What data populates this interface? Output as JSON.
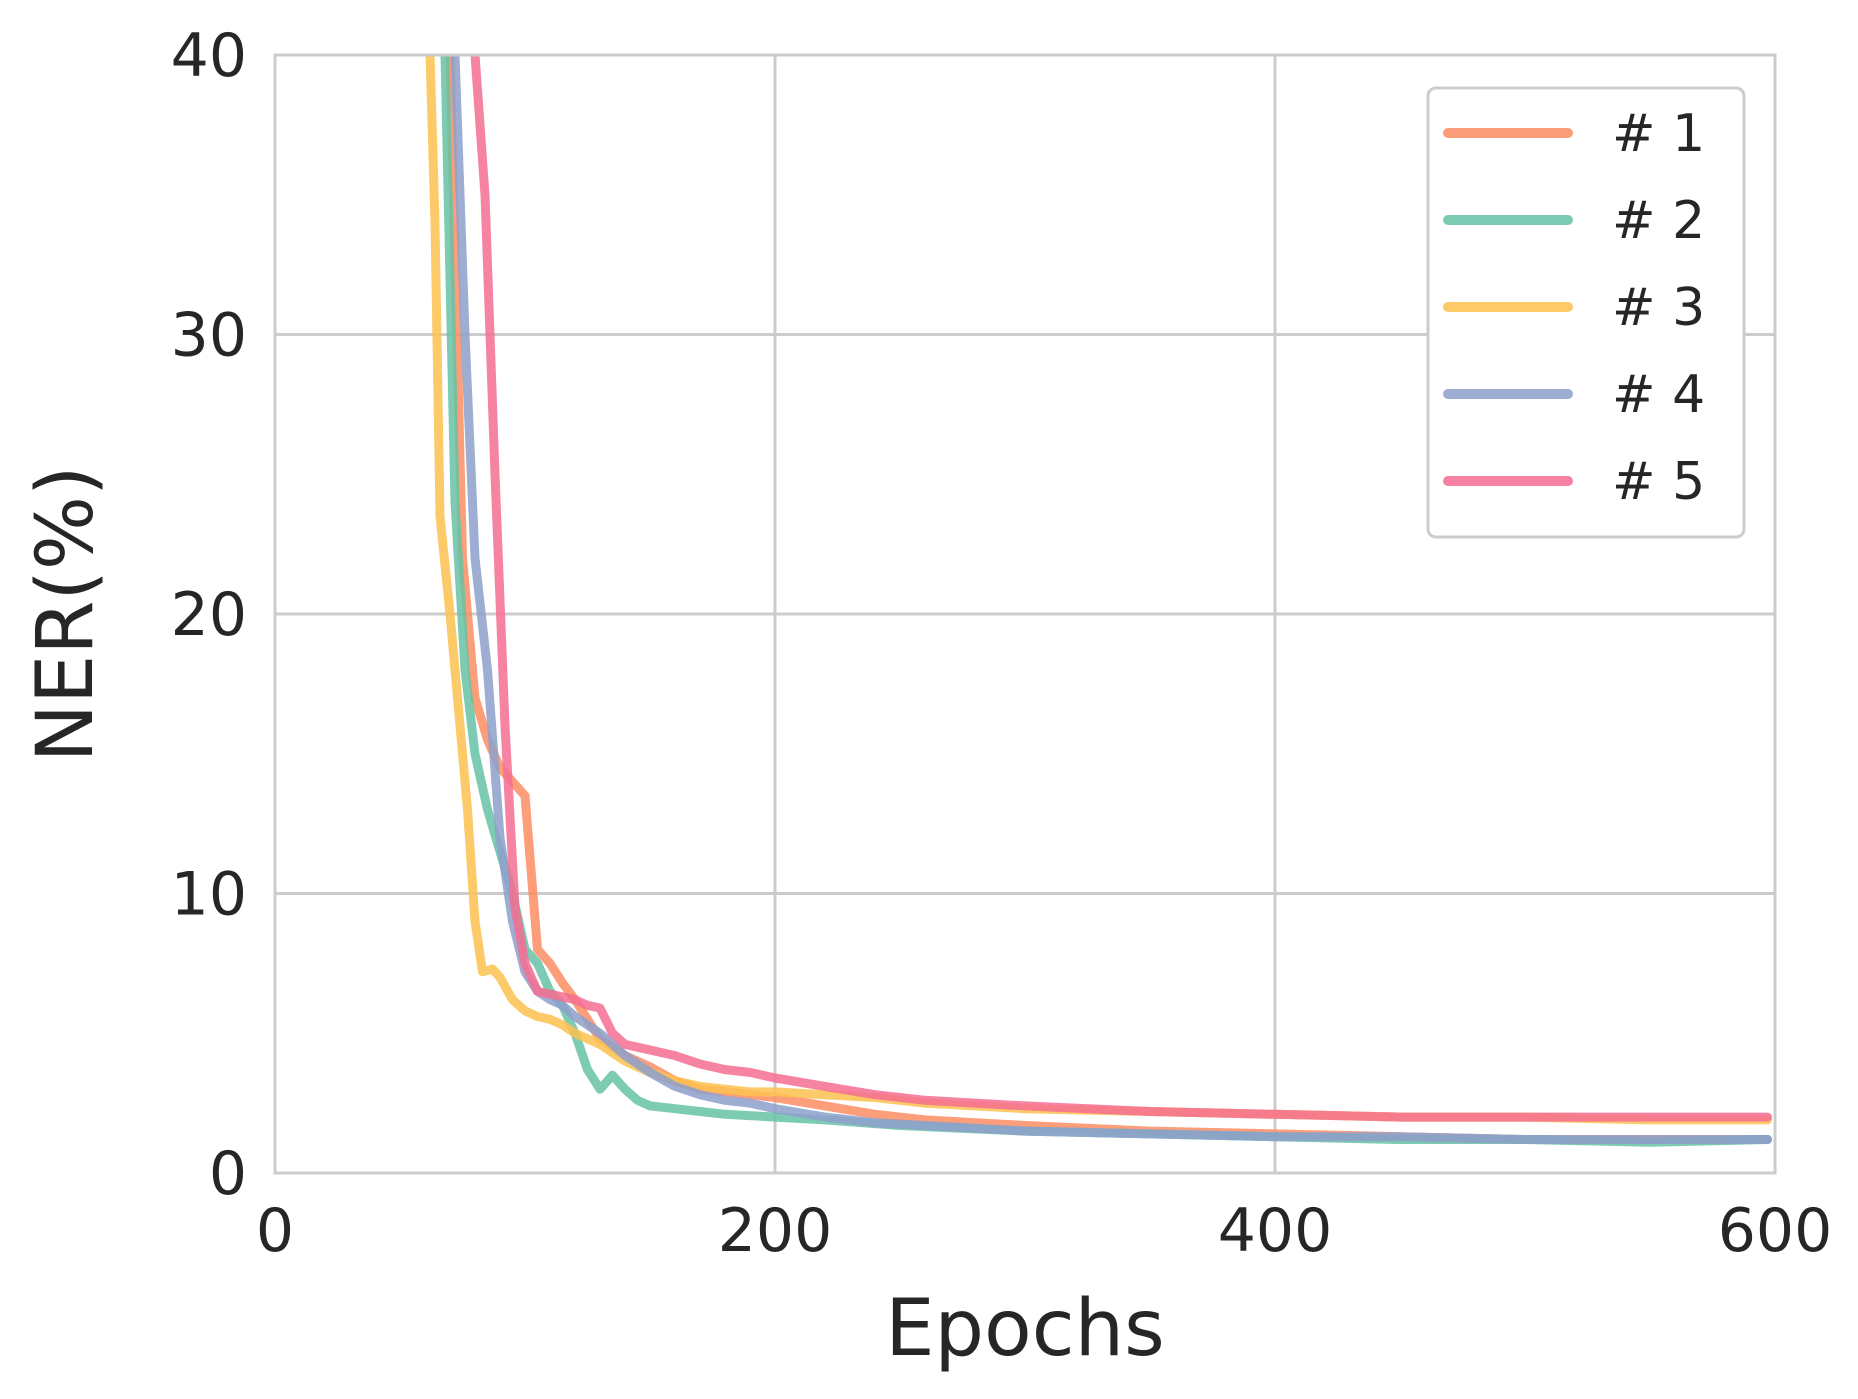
{
  "chart_data": {
    "type": "line",
    "xlabel": "Epochs",
    "ylabel": "NER(%)",
    "xlim": [
      0,
      600
    ],
    "ylim": [
      0,
      40
    ],
    "xticks": [
      "0",
      "200",
      "400",
      "600"
    ],
    "yticks": [
      "0",
      "10",
      "20",
      "30",
      "40"
    ],
    "grid": true,
    "legend_position": "top-right",
    "series": [
      {
        "name": "# 1",
        "color": "#fc8d62",
        "x": [
          70,
          75,
          80,
          85,
          90,
          95,
          100,
          105,
          110,
          115,
          120,
          125,
          130,
          140,
          150,
          160,
          170,
          180,
          190,
          200,
          220,
          240,
          260,
          280,
          300,
          350,
          400,
          450,
          500,
          550,
          597
        ],
        "y": [
          40,
          22,
          17,
          15.5,
          14.5,
          14,
          13.5,
          8,
          7.5,
          6.8,
          6.2,
          5.5,
          4.8,
          4.2,
          3.8,
          3.3,
          3.0,
          2.9,
          2.8,
          2.7,
          2.4,
          2.1,
          1.9,
          1.8,
          1.7,
          1.5,
          1.4,
          1.3,
          1.2,
          1.2,
          1.2
        ]
      },
      {
        "name": "# 2",
        "color": "#66c2a5",
        "x": [
          68,
          72,
          76,
          80,
          85,
          90,
          95,
          100,
          105,
          110,
          115,
          120,
          125,
          130,
          135,
          140,
          145,
          150,
          160,
          170,
          180,
          200,
          220,
          250,
          300,
          350,
          400,
          450,
          500,
          550,
          597
        ],
        "y": [
          40,
          24,
          18,
          15,
          13,
          11.5,
          10,
          8,
          7.5,
          6.5,
          6,
          5,
          3.7,
          3.0,
          3.5,
          3.0,
          2.6,
          2.4,
          2.3,
          2.2,
          2.1,
          2.0,
          1.9,
          1.7,
          1.5,
          1.4,
          1.3,
          1.2,
          1.2,
          1.1,
          1.2
        ]
      },
      {
        "name": "# 3",
        "color": "#fdc14f",
        "x": [
          62,
          64,
          66,
          70,
          74,
          77,
          80,
          83,
          87,
          90,
          95,
          100,
          105,
          110,
          115,
          120,
          125,
          130,
          140,
          150,
          160,
          170,
          180,
          190,
          200,
          220,
          240,
          260,
          280,
          300,
          350,
          400,
          450,
          500,
          550,
          597
        ],
        "y": [
          40,
          34,
          23.5,
          20,
          16,
          13,
          9,
          7.2,
          7.3,
          7.0,
          6.2,
          5.8,
          5.6,
          5.5,
          5.3,
          5.0,
          4.8,
          4.6,
          4.0,
          3.6,
          3.3,
          3.1,
          3.0,
          2.9,
          2.9,
          2.8,
          2.7,
          2.5,
          2.4,
          2.3,
          2.2,
          2.1,
          2.0,
          2.0,
          1.9,
          1.9
        ]
      },
      {
        "name": "# 4",
        "color": "#8da0cb",
        "x": [
          72,
          76,
          80,
          85,
          90,
          95,
          100,
          105,
          110,
          115,
          120,
          130,
          140,
          150,
          160,
          170,
          180,
          190,
          200,
          220,
          240,
          260,
          280,
          300,
          350,
          400,
          450,
          500,
          550,
          597
        ],
        "y": [
          40,
          30,
          22,
          18,
          12,
          9,
          7.2,
          6.5,
          6.2,
          6.0,
          5.6,
          5.0,
          4.2,
          3.6,
          3.1,
          2.8,
          2.6,
          2.5,
          2.3,
          2.0,
          1.8,
          1.7,
          1.6,
          1.5,
          1.4,
          1.3,
          1.3,
          1.2,
          1.2,
          1.2
        ]
      },
      {
        "name": "# 5",
        "color": "#f46d92",
        "x": [
          80,
          84,
          88,
          92,
          96,
          100,
          105,
          110,
          115,
          120,
          125,
          130,
          135,
          140,
          150,
          160,
          170,
          180,
          190,
          200,
          220,
          240,
          260,
          280,
          300,
          350,
          400,
          450,
          500,
          550,
          597
        ],
        "y": [
          40,
          35,
          25,
          16,
          9.5,
          7.5,
          6.5,
          6.4,
          6.3,
          6.2,
          6.0,
          5.9,
          5.0,
          4.6,
          4.4,
          4.2,
          3.9,
          3.7,
          3.6,
          3.4,
          3.1,
          2.8,
          2.6,
          2.5,
          2.4,
          2.2,
          2.1,
          2.0,
          2.0,
          2.0,
          2.0
        ]
      }
    ]
  }
}
